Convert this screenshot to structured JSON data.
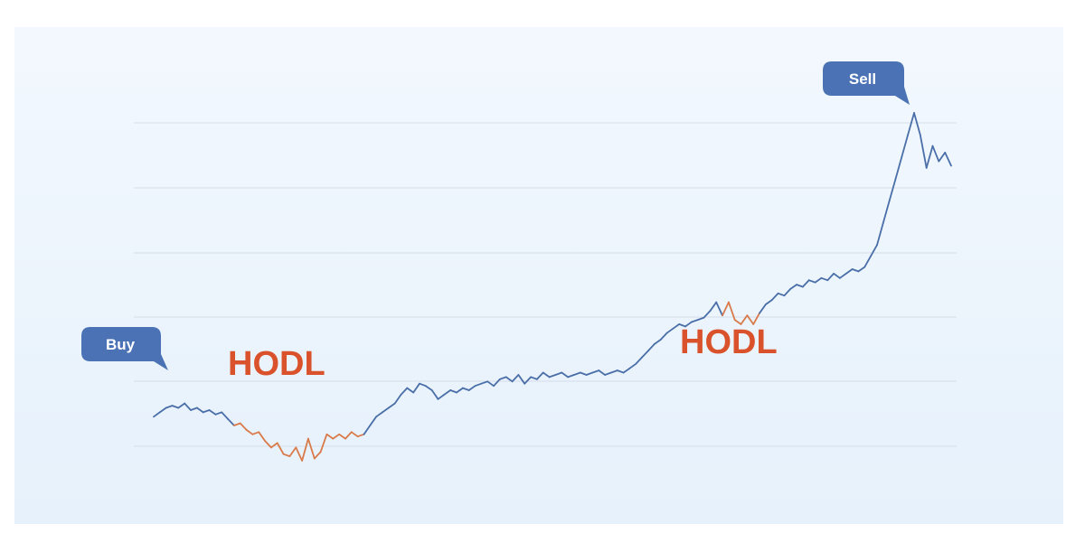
{
  "chart_data": {
    "type": "line",
    "title": "",
    "xlabel": "",
    "ylabel": "",
    "grid": true,
    "series": [
      {
        "color": "#4a6fa8",
        "highlight_color": "#d97a4a",
        "values": [
          52,
          54,
          56,
          57,
          56,
          58,
          55,
          56,
          54,
          55,
          53,
          54,
          51,
          48,
          49,
          46,
          44,
          45,
          41,
          38,
          40,
          35,
          34,
          38,
          32,
          42,
          33,
          36,
          44,
          42,
          44,
          42,
          45,
          43,
          44,
          48,
          52,
          54,
          56,
          58,
          62,
          65,
          63,
          67,
          66,
          64,
          60,
          62,
          64,
          63,
          65,
          64,
          66,
          67,
          68,
          66,
          69,
          70,
          68,
          71,
          67,
          70,
          69,
          72,
          70,
          71,
          72,
          70,
          71,
          72,
          71,
          72,
          73,
          71,
          72,
          73,
          72,
          74,
          76,
          79,
          82,
          85,
          87,
          90,
          92,
          94,
          93,
          95,
          96,
          97,
          100,
          104,
          98,
          104,
          96,
          94,
          98,
          94,
          99,
          103,
          105,
          108,
          107,
          110,
          112,
          111,
          114,
          113,
          115,
          114,
          117,
          115,
          117,
          119,
          118,
          120,
          125,
          130,
          140,
          150,
          160,
          170,
          180,
          190,
          180,
          165,
          175,
          168,
          172,
          166
        ],
        "highlight_ranges": [
          [
            13,
            34
          ],
          [
            92,
            98
          ]
        ]
      }
    ]
  },
  "callouts": {
    "buy": "Buy",
    "sell": "Sell"
  },
  "annotations": {
    "hodl_1": "HODL",
    "hodl_2": "HODL"
  },
  "colors": {
    "callout_bg": "#4a72b4",
    "callout_text": "#ffffff",
    "hodl": "#d9522b",
    "grid": "#d4dde8"
  }
}
